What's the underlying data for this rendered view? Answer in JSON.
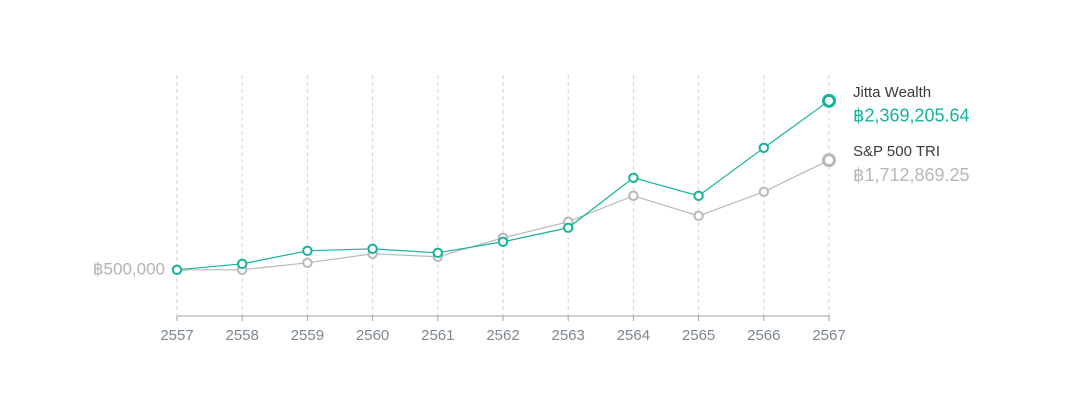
{
  "chart_data": {
    "type": "line",
    "categories": [
      "2557",
      "2558",
      "2559",
      "2560",
      "2561",
      "2562",
      "2563",
      "2564",
      "2565",
      "2566",
      "2567"
    ],
    "series": [
      {
        "name": "S&P 500 TRI",
        "color": "#b8b8b8",
        "values": [
          500000,
          500000,
          577000,
          677000,
          644000,
          854000,
          1031000,
          1318000,
          1097000,
          1363000,
          1712869.25
        ],
        "value_labels": [
          null,
          null,
          null,
          null,
          null,
          null,
          null,
          null,
          null,
          null,
          "฿1,712,869.25"
        ]
      },
      {
        "name": "Jitta Wealth",
        "color": "#14b39c",
        "values": [
          500000,
          566000,
          710000,
          732000,
          688000,
          810000,
          965000,
          1518000,
          1318000,
          1849000,
          2369205.64
        ],
        "value_labels": [
          null,
          null,
          null,
          null,
          null,
          null,
          null,
          null,
          null,
          null,
          "฿2,369,205.64"
        ]
      }
    ],
    "ylim": [
      0,
      2500000
    ],
    "yticks": [
      {
        "value": 500000,
        "label": "฿500,000"
      }
    ],
    "grid": true
  }
}
